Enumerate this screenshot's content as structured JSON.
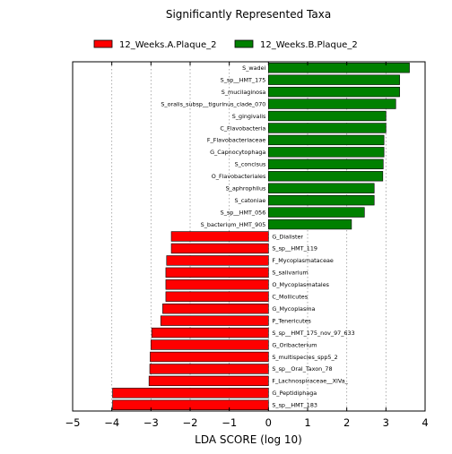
{
  "chart_data": {
    "type": "bar",
    "orientation": "horizontal",
    "title": "Significantly Represented Taxa",
    "xlabel": "LDA SCORE (log 10)",
    "ylabel": "",
    "xlim": [
      -5,
      4
    ],
    "xticks": [
      -5,
      -4,
      -3,
      -2,
      -1,
      0,
      1,
      2,
      3,
      4
    ],
    "xtick_labels": [
      "−5",
      "−4",
      "−3",
      "−2",
      "−1",
      "0",
      "1",
      "2",
      "3",
      "4"
    ],
    "grid": "vertical dotted",
    "legend_position": "top",
    "series": [
      {
        "name": "12_Weeks.A.Plaque_2",
        "color": "#ff0000"
      },
      {
        "name": "12_Weeks.B.Plaque_2",
        "color": "#008000"
      }
    ],
    "bars": [
      {
        "label": "S_wadei",
        "value": 3.6,
        "series": 1
      },
      {
        "label": "S_sp__HMT_175",
        "value": 3.35,
        "series": 1
      },
      {
        "label": "S_mucilaginosa",
        "value": 3.35,
        "series": 1
      },
      {
        "label": "S_oralis_subsp__tigurinus_clade_070",
        "value": 3.25,
        "series": 1
      },
      {
        "label": "S_gingivalis",
        "value": 3.0,
        "series": 1
      },
      {
        "label": "C_Flavobacteria",
        "value": 3.0,
        "series": 1
      },
      {
        "label": "F_Flavobacteriaceae",
        "value": 2.95,
        "series": 1
      },
      {
        "label": "G_Capnocytophaga",
        "value": 2.95,
        "series": 1
      },
      {
        "label": "S_concisus",
        "value": 2.93,
        "series": 1
      },
      {
        "label": "O_Flavobacteriales",
        "value": 2.92,
        "series": 1
      },
      {
        "label": "S_aphrophilus",
        "value": 2.7,
        "series": 1
      },
      {
        "label": "S_catoniae",
        "value": 2.7,
        "series": 1
      },
      {
        "label": "S_sp__HMT_056",
        "value": 2.45,
        "series": 1
      },
      {
        "label": "S_bacterium_HMT_905",
        "value": 2.12,
        "series": 1
      },
      {
        "label": "G_Dialister",
        "value": -2.48,
        "series": 0
      },
      {
        "label": "S_sp__HMT_119",
        "value": -2.48,
        "series": 0
      },
      {
        "label": "F_Mycoplasmataceae",
        "value": -2.6,
        "series": 0
      },
      {
        "label": "S_salivarium",
        "value": -2.62,
        "series": 0
      },
      {
        "label": "O_Mycoplasmatales",
        "value": -2.62,
        "series": 0
      },
      {
        "label": "C_Mollicutes",
        "value": -2.62,
        "series": 0
      },
      {
        "label": "G_Mycoplasma",
        "value": -2.7,
        "series": 0
      },
      {
        "label": "P_Tenericutes",
        "value": -2.75,
        "series": 0
      },
      {
        "label": "S_sp__HMT_175_nov_97_633",
        "value": -2.98,
        "series": 0
      },
      {
        "label": "G_Oribacterium",
        "value": -3.0,
        "series": 0
      },
      {
        "label": "S_multispecies_spp5_2",
        "value": -3.02,
        "series": 0
      },
      {
        "label": "S_sp__Oral_Taxon_78",
        "value": -3.03,
        "series": 0
      },
      {
        "label": "F_Lachnospiraceae__XIVa_",
        "value": -3.05,
        "series": 0
      },
      {
        "label": "G_Peptidiphaga",
        "value": -3.98,
        "series": 0
      },
      {
        "label": "S_sp__HMT_183",
        "value": -3.98,
        "series": 0
      }
    ]
  }
}
